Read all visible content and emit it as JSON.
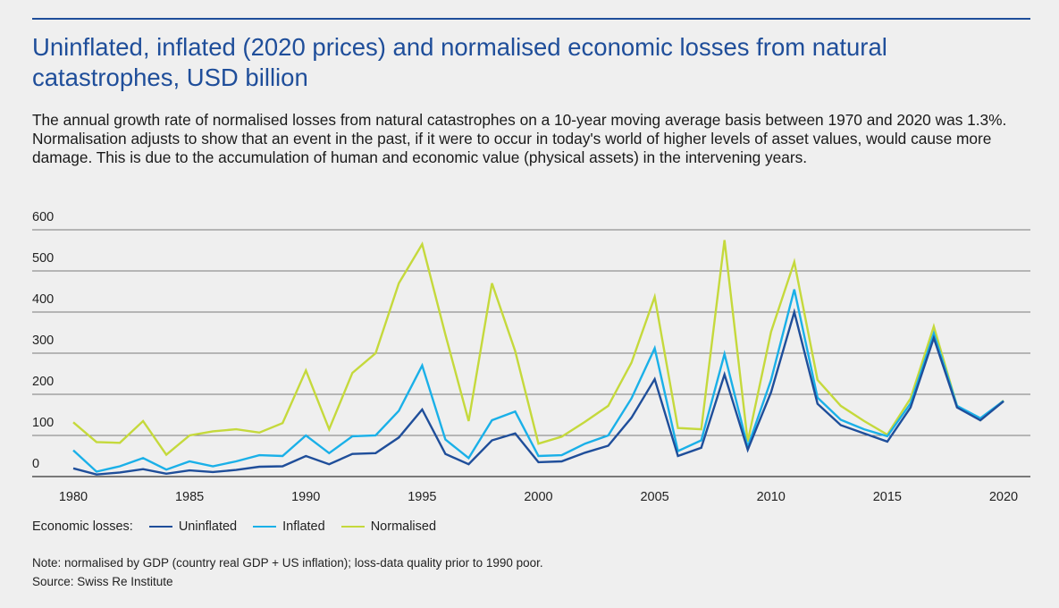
{
  "title": "Uninflated, inflated (2020 prices) and normalised economic losses from natural catastrophes, USD billion",
  "subtitle": "The annual growth rate of normalised losses from natural catastrophes on a 10-year moving average basis between 1970 and 2020 was 1.3%. Normalisation adjusts to show that an event in the past, if it were to occur in today's world of higher levels of asset values, would cause more damage. This is due to the accumulation of human and economic value (physical assets) in the intervening years.",
  "legend": {
    "prefix": "Economic losses:",
    "items": [
      "Uninflated",
      "Inflated",
      "Normalised"
    ]
  },
  "note": "Note: normalised by GDP (country real GDP + US inflation); loss-data quality prior to 1990 poor.",
  "source": "Source: Swiss Re Institute",
  "colors": {
    "title": "#1f4e9a",
    "uninflated": "#1f4e9a",
    "inflated": "#1ab0e8",
    "normalised": "#c5d93c",
    "grid": "#555555"
  },
  "chart_data": {
    "type": "line",
    "ylim": [
      0,
      600
    ],
    "yticks": [
      0,
      100,
      200,
      300,
      400,
      500,
      600
    ],
    "xlim": [
      1980,
      2020
    ],
    "xticks": [
      1980,
      1985,
      1990,
      1995,
      2000,
      2005,
      2010,
      2015,
      2020
    ],
    "grid": true,
    "legend_position": "bottom-left",
    "x": [
      1980,
      1981,
      1982,
      1983,
      1984,
      1985,
      1986,
      1987,
      1988,
      1989,
      1990,
      1991,
      1992,
      1993,
      1994,
      1995,
      1996,
      1997,
      1998,
      1999,
      2000,
      2001,
      2002,
      2003,
      2004,
      2005,
      2006,
      2007,
      2008,
      2009,
      2010,
      2011,
      2012,
      2013,
      2014,
      2015,
      2016,
      2017,
      2018,
      2019,
      2020
    ],
    "series": [
      {
        "name": "Uninflated",
        "values": [
          20,
          5,
          10,
          18,
          7,
          15,
          11,
          16,
          24,
          25,
          50,
          30,
          55,
          57,
          95,
          163,
          55,
          30,
          88,
          105,
          35,
          37,
          58,
          75,
          143,
          237,
          50,
          70,
          248,
          65,
          205,
          400,
          177,
          125,
          105,
          85,
          168,
          337,
          168,
          137,
          183
        ]
      },
      {
        "name": "Inflated",
        "values": [
          64,
          12,
          25,
          45,
          17,
          37,
          25,
          37,
          52,
          50,
          100,
          57,
          98,
          100,
          160,
          270,
          90,
          45,
          137,
          158,
          50,
          52,
          80,
          100,
          190,
          312,
          62,
          88,
          298,
          72,
          235,
          455,
          192,
          138,
          115,
          98,
          178,
          348,
          172,
          142,
          184
        ]
      },
      {
        "name": "Normalised",
        "values": [
          132,
          84,
          82,
          135,
          53,
          100,
          110,
          115,
          107,
          130,
          258,
          115,
          252,
          300,
          470,
          565,
          345,
          135,
          470,
          305,
          80,
          97,
          133,
          172,
          277,
          437,
          118,
          115,
          575,
          85,
          352,
          522,
          235,
          172,
          135,
          102,
          190,
          365,
          172,
          137,
          185
        ]
      }
    ]
  }
}
